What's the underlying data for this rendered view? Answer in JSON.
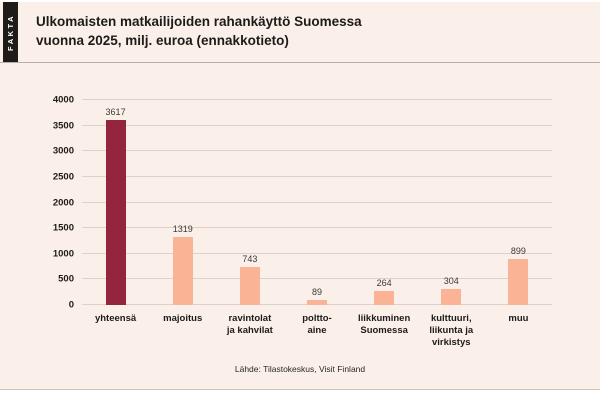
{
  "header": {
    "badge": "FAKTA",
    "title_line1": "Ulkomaisten matkailijoiden rahankäyttö Suomessa",
    "title_line2": "vuonna 2025, milj. euroa (ennakkotieto)"
  },
  "source": "Lähde: Tilastokeskus, Visit Finland",
  "colors": {
    "background": "#faf0e9",
    "badge_bg": "#1e1b19",
    "bar_highlight": "#94253f",
    "bar_default": "#fab394",
    "gridline": "#ddd2cb",
    "text": "#1d1b1a"
  },
  "chart_data": {
    "type": "bar",
    "title": "Ulkomaisten matkailijoiden rahankäyttö Suomessa vuonna 2025, milj. euroa (ennakkotieto)",
    "categories": [
      "yhteensä",
      "majoitus",
      "ravintolat\nja kahvilat",
      "poltto-\naine",
      "liikkuminen\nSuomessa",
      "kulttuuri,\nliikunta ja\nvirkistys",
      "muu"
    ],
    "values": [
      3617,
      1319,
      743,
      89,
      264,
      304,
      899
    ],
    "highlight_index": 0,
    "yticks": [
      0,
      500,
      1000,
      1500,
      2000,
      2500,
      3000,
      3500,
      4000
    ],
    "ylim": [
      0,
      4000
    ],
    "grid": true,
    "legend": null,
    "xlabel": "",
    "ylabel": "",
    "source": "Lähde: Tilastokeskus, Visit Finland"
  }
}
